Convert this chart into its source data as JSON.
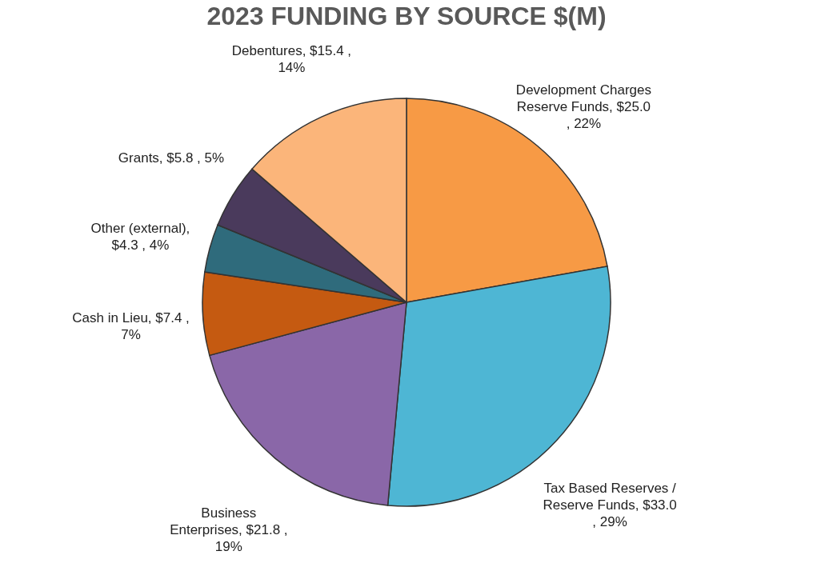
{
  "chart_data": {
    "type": "pie",
    "title": "2023 FUNDING BY SOURCE $(M)",
    "categories": [
      "Development Charges Reserve Funds",
      "Tax Based Reserves / Reserve Funds",
      "Business Enterprises",
      "Cash in Lieu",
      "Other (external)",
      "Grants",
      "Debentures"
    ],
    "values": [
      25.0,
      33.0,
      21.8,
      7.4,
      4.3,
      5.8,
      15.4
    ],
    "value_labels": [
      ", $25.0 , 22%",
      ", $33.0 , 29%",
      ", $21.8 , 19%",
      ", $7.4 , 7%",
      ", $4.3 , 4%",
      ", $5.8 , 5%",
      ", $15.4 , 14%"
    ],
    "colors": [
      "#f79a45",
      "#4eb6d4",
      "#8a67a8",
      "#c55a11",
      "#2f6b7c",
      "#4a3a5c",
      "#fbb57a"
    ],
    "legend": false
  }
}
